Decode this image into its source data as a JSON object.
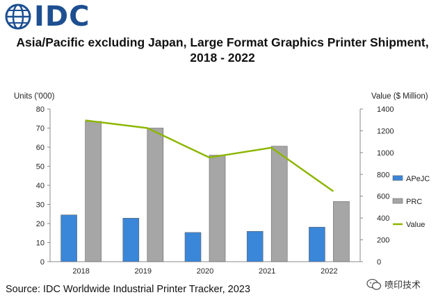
{
  "logo": {
    "text": "IDC",
    "color": "#1d4f91"
  },
  "chart_data": {
    "type": "bar",
    "title": "Asia/Pacific excluding Japan, Large Format Graphics Printer Shipment,",
    "title_line2": "2018 - 2022",
    "categories": [
      "2018",
      "2019",
      "2020",
      "2021",
      "2022"
    ],
    "series": [
      {
        "name": "APeJC",
        "type": "bar",
        "axis": "left",
        "color": "#3a86d8",
        "values": [
          24.5,
          22.8,
          15.3,
          15.9,
          18.1
        ]
      },
      {
        "name": "PRC",
        "type": "bar",
        "axis": "left",
        "color": "#a6a6a6",
        "values": [
          73.5,
          70,
          55.8,
          60.5,
          31.5
        ]
      },
      {
        "name": "Value",
        "type": "line",
        "axis": "right",
        "color": "#8db600",
        "values": [
          1295,
          1225,
          955,
          1045,
          645
        ]
      }
    ],
    "ylabel": "Units ('000)",
    "y2label": "Value ($ Million)",
    "ylim": [
      0,
      80
    ],
    "y2lim": [
      0,
      1400
    ],
    "yticks": [
      "0",
      "10",
      "20",
      "30",
      "40",
      "50",
      "60",
      "70",
      "80"
    ],
    "y2ticks": [
      "0",
      "200",
      "400",
      "600",
      "800",
      "1000",
      "1200",
      "1400"
    ],
    "grid": false,
    "legend_position": "right"
  },
  "source": "Source: IDC Worldwide Industrial Printer Tracker, 2023",
  "watermark": {
    "text": "喷印技术"
  }
}
